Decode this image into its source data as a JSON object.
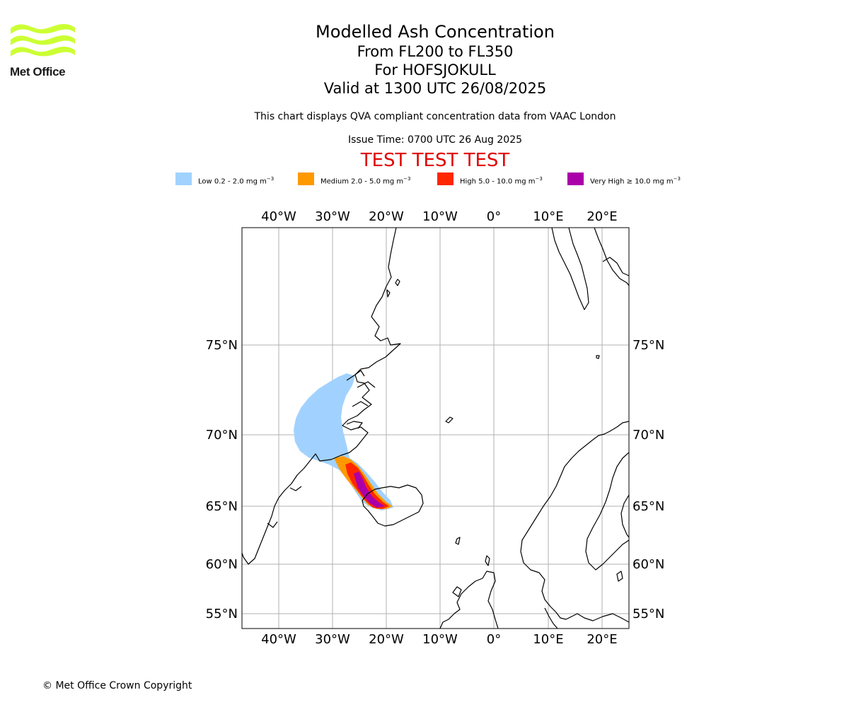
{
  "logo": {
    "text": "Met Office",
    "color": "#ccff33"
  },
  "titles": {
    "line1": "Modelled Ash Concentration",
    "line2": "From FL200 to FL350",
    "line3": "For HOFSJOKULL",
    "line4": "Valid at 1300 UTC 26/08/2025"
  },
  "subtitle": "This chart displays QVA compliant concentration data from VAAC London",
  "issue_time": "Issue Time: 0700 UTC 26 Aug 2025",
  "test_banner": "TEST TEST TEST",
  "legend": [
    {
      "label": "Low 0.2 - 2.0 mg m",
      "unit_exp": "−3",
      "color": "#a1d2ff"
    },
    {
      "label": "Medium 2.0 - 5.0 mg m",
      "unit_exp": "−3",
      "color": "#ff9900"
    },
    {
      "label": "High 5.0 - 10.0 mg m",
      "unit_exp": "−3",
      "color": "#ff2600"
    },
    {
      "label": "Very High  ≥  10.0 mg m",
      "unit_exp": "−3",
      "color": "#aa00aa"
    }
  ],
  "map": {
    "lon_ticks": [
      "40°W",
      "30°W",
      "20°W",
      "10°W",
      "0°",
      "10°E",
      "20°E"
    ],
    "lat_ticks": [
      "75°N",
      "70°N",
      "65°N",
      "60°N",
      "55°N"
    ],
    "gridlines": true,
    "coastline_color": "#000000"
  },
  "copyright": "© Met Office Crown Copyright"
}
